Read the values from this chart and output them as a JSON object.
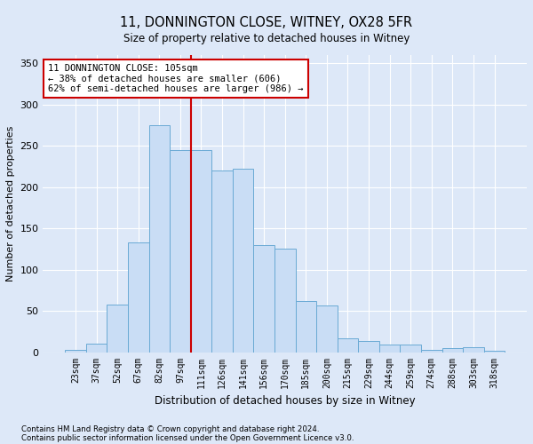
{
  "title_line1": "11, DONNINGTON CLOSE, WITNEY, OX28 5FR",
  "title_line2": "Size of property relative to detached houses in Witney",
  "xlabel": "Distribution of detached houses by size in Witney",
  "ylabel": "Number of detached properties",
  "bar_labels": [
    "23sqm",
    "37sqm",
    "52sqm",
    "67sqm",
    "82sqm",
    "97sqm",
    "111sqm",
    "126sqm",
    "141sqm",
    "156sqm",
    "170sqm",
    "185sqm",
    "200sqm",
    "215sqm",
    "229sqm",
    "244sqm",
    "259sqm",
    "274sqm",
    "288sqm",
    "303sqm",
    "318sqm"
  ],
  "bar_values": [
    3,
    10,
    58,
    133,
    275,
    245,
    245,
    220,
    222,
    130,
    125,
    62,
    57,
    17,
    14,
    9,
    9,
    3,
    5,
    6,
    2
  ],
  "bar_color": "#c9ddf5",
  "bar_edge_color": "#6aaad4",
  "ylim": [
    0,
    360
  ],
  "yticks": [
    0,
    50,
    100,
    150,
    200,
    250,
    300,
    350
  ],
  "vline_pos": 6.0,
  "annotation_text": "11 DONNINGTON CLOSE: 105sqm\n← 38% of detached houses are smaller (606)\n62% of semi-detached houses are larger (986) →",
  "annotation_box_color": "#ffffff",
  "annotation_box_edge": "#cc0000",
  "footnote1": "Contains HM Land Registry data © Crown copyright and database right 2024.",
  "footnote2": "Contains public sector information licensed under the Open Government Licence v3.0.",
  "bg_color": "#dde8f8",
  "plot_bg_color": "#dde8f8",
  "grid_color": "#ffffff",
  "vline_color": "#cc0000"
}
